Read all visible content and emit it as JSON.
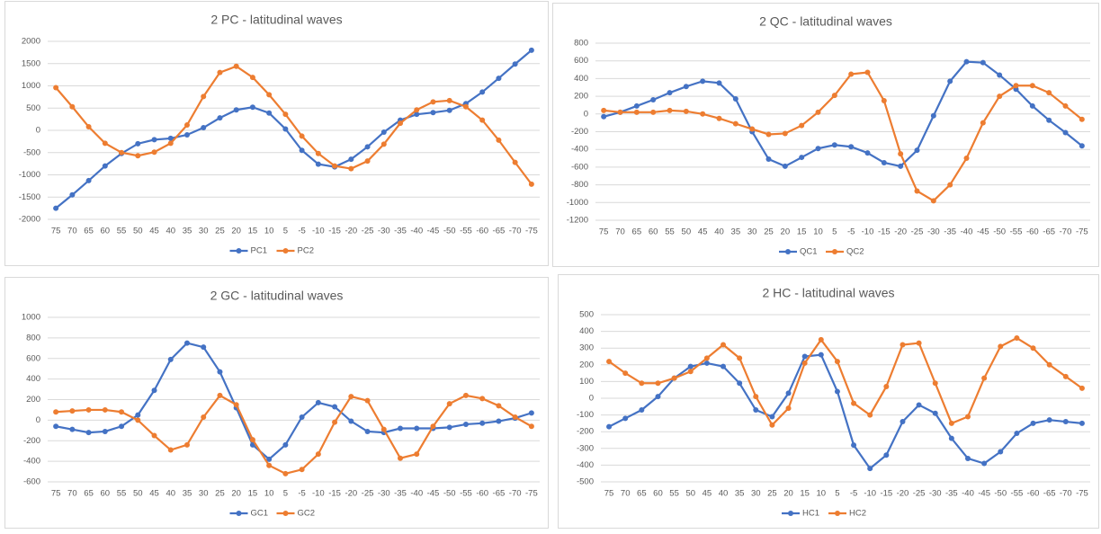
{
  "chart_data": [
    {
      "type": "line",
      "title": "2 PC - latitudinal waves",
      "categories": [
        "75",
        "70",
        "65",
        "60",
        "55",
        "50",
        "45",
        "40",
        "35",
        "30",
        "25",
        "20",
        "15",
        "10",
        "5",
        "-5",
        "-10",
        "-15",
        "-20",
        "-25",
        "-30",
        "-35",
        "-40",
        "-45",
        "-50",
        "-55",
        "-60",
        "-65",
        "-70",
        "-75"
      ],
      "series": [
        {
          "name": "PC1",
          "color": "#4472c4",
          "values": [
            -1750,
            -1450,
            -1130,
            -800,
            -520,
            -300,
            -210,
            -180,
            -100,
            60,
            280,
            460,
            520,
            390,
            30,
            -450,
            -760,
            -820,
            -650,
            -370,
            -40,
            230,
            360,
            400,
            450,
            600,
            860,
            1170,
            1490,
            1800
          ]
        },
        {
          "name": "PC2",
          "color": "#ed7d31",
          "values": [
            960,
            530,
            80,
            -290,
            -500,
            -570,
            -490,
            -290,
            120,
            760,
            1300,
            1440,
            1190,
            800,
            360,
            -130,
            -520,
            -800,
            -860,
            -690,
            -310,
            160,
            460,
            640,
            670,
            530,
            230,
            -220,
            -720,
            -1210
          ]
        }
      ],
      "ylim": [
        -2000,
        2000
      ],
      "yticks": [
        -2000,
        -1500,
        -1000,
        -500,
        0,
        500,
        1000,
        1500,
        2000
      ],
      "grid": true,
      "legend": "bottom"
    },
    {
      "type": "line",
      "title": "2 QC - latitudinal waves",
      "categories": [
        "75",
        "70",
        "65",
        "60",
        "55",
        "50",
        "45",
        "40",
        "35",
        "30",
        "25",
        "20",
        "15",
        "10",
        "5",
        "-5",
        "-10",
        "-15",
        "-20",
        "-25",
        "-30",
        "-35",
        "-40",
        "-45",
        "-50",
        "-55",
        "-60",
        "-65",
        "-70",
        "-75"
      ],
      "series": [
        {
          "name": "QC1",
          "color": "#4472c4",
          "values": [
            -30,
            20,
            90,
            160,
            240,
            310,
            370,
            350,
            170,
            -200,
            -510,
            -590,
            -490,
            -390,
            -350,
            -370,
            -440,
            -550,
            -590,
            -410,
            -20,
            370,
            590,
            580,
            440,
            280,
            90,
            -70,
            -210,
            -360
          ]
        },
        {
          "name": "QC2",
          "color": "#ed7d31",
          "values": [
            40,
            20,
            20,
            20,
            40,
            30,
            0,
            -50,
            -110,
            -170,
            -230,
            -220,
            -130,
            20,
            210,
            450,
            470,
            150,
            -450,
            -870,
            -980,
            -800,
            -500,
            -100,
            200,
            320,
            320,
            240,
            90,
            -60
          ]
        }
      ],
      "ylim": [
        -1200,
        800
      ],
      "yticks": [
        -1200,
        -1000,
        -800,
        -600,
        -400,
        -200,
        0,
        200,
        400,
        600,
        800
      ],
      "grid": true,
      "legend": "bottom"
    },
    {
      "type": "line",
      "title": "2 GC - latitudinal waves",
      "categories": [
        "75",
        "70",
        "65",
        "60",
        "55",
        "50",
        "45",
        "40",
        "35",
        "30",
        "25",
        "20",
        "15",
        "10",
        "5",
        "-5",
        "-10",
        "-15",
        "-20",
        "-25",
        "-30",
        "-35",
        "-40",
        "-45",
        "-50",
        "-55",
        "-60",
        "-65",
        "-70",
        "-75"
      ],
      "series": [
        {
          "name": "GC1",
          "color": "#4472c4",
          "values": [
            -60,
            -90,
            -120,
            -110,
            -60,
            50,
            290,
            590,
            750,
            710,
            470,
            120,
            -240,
            -380,
            -240,
            30,
            170,
            130,
            -10,
            -110,
            -120,
            -80,
            -80,
            -80,
            -70,
            -40,
            -30,
            -10,
            20,
            70
          ]
        },
        {
          "name": "GC2",
          "color": "#ed7d31",
          "values": [
            80,
            90,
            100,
            100,
            80,
            0,
            -150,
            -290,
            -240,
            30,
            240,
            150,
            -190,
            -440,
            -520,
            -480,
            -330,
            -20,
            230,
            190,
            -90,
            -370,
            -330,
            -60,
            160,
            240,
            210,
            140,
            30,
            -60
          ]
        }
      ],
      "ylim": [
        -600,
        1000
      ],
      "yticks": [
        -600,
        -400,
        -200,
        0,
        200,
        400,
        600,
        800,
        1000
      ],
      "grid": true,
      "legend": "bottom"
    },
    {
      "type": "line",
      "title": "2 HC - latitudinal waves",
      "categories": [
        "75",
        "70",
        "65",
        "60",
        "55",
        "50",
        "45",
        "40",
        "35",
        "30",
        "25",
        "20",
        "15",
        "10",
        "5",
        "-5",
        "-10",
        "-15",
        "-20",
        "-25",
        "-30",
        "-35",
        "-40",
        "-45",
        "-50",
        "-55",
        "-60",
        "-65",
        "-70",
        "-75"
      ],
      "series": [
        {
          "name": "HC1",
          "color": "#4472c4",
          "values": [
            -170,
            -120,
            -70,
            10,
            120,
            190,
            210,
            190,
            90,
            -70,
            -110,
            30,
            250,
            260,
            40,
            -280,
            -420,
            -340,
            -140,
            -40,
            -90,
            -240,
            -360,
            -390,
            -320,
            -210,
            -150,
            -130,
            -140,
            -150
          ]
        },
        {
          "name": "HC2",
          "color": "#ed7d31",
          "values": [
            220,
            150,
            90,
            90,
            120,
            160,
            240,
            320,
            240,
            10,
            -160,
            -60,
            210,
            350,
            220,
            -30,
            -100,
            70,
            320,
            330,
            90,
            -150,
            -110,
            120,
            310,
            360,
            300,
            200,
            130,
            60
          ]
        }
      ],
      "ylim": [
        -500,
        500
      ],
      "yticks": [
        -500,
        -400,
        -300,
        -200,
        -100,
        0,
        100,
        200,
        300,
        400,
        500
      ],
      "grid": true,
      "legend": "bottom"
    }
  ]
}
